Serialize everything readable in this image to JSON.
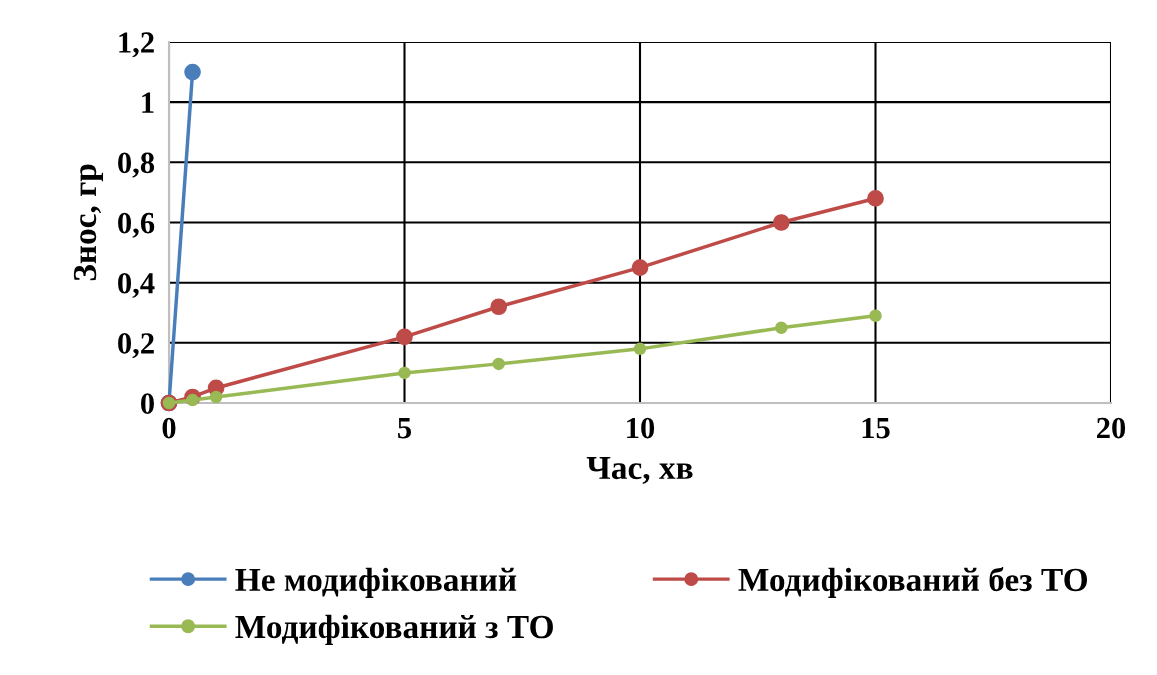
{
  "chart_data": {
    "type": "line",
    "xlabel": "Час, хв",
    "ylabel": "Знос, гр",
    "xlim": [
      0,
      20
    ],
    "xticks": [
      0,
      5,
      10,
      15,
      20
    ],
    "ylim": [
      0,
      1.2
    ],
    "yticks": [
      0,
      {
        "value": 0.2,
        "label": "0,2"
      },
      {
        "value": 0.4,
        "label": "0,4"
      },
      {
        "value": 0.6,
        "label": "0,6"
      },
      {
        "value": 0.8,
        "label": "0,8"
      },
      1,
      {
        "value": 1.2,
        "label": "1,2"
      }
    ],
    "grid": true,
    "legend": "bottom",
    "marker": "circle",
    "line_style": "solid",
    "series": [
      {
        "name": "Не модифікований",
        "color": "#4a7ebb",
        "x": [
          0,
          0.5
        ],
        "values": [
          0,
          1.1
        ]
      },
      {
        "name": "Модифікований без ТО",
        "color": "#be4b48",
        "x": [
          0,
          0.5,
          1,
          5,
          7,
          10,
          13,
          15
        ],
        "values": [
          0,
          0.02,
          0.05,
          0.22,
          0.32,
          0.45,
          0.6,
          0.68
        ]
      },
      {
        "name": "Модифікований з ТО",
        "color": "#98b954",
        "x": [
          0,
          0.5,
          1,
          5,
          7,
          10,
          13,
          15
        ],
        "values": [
          0,
          0.01,
          0.02,
          0.1,
          0.13,
          0.18,
          0.25,
          0.29
        ]
      }
    ]
  }
}
